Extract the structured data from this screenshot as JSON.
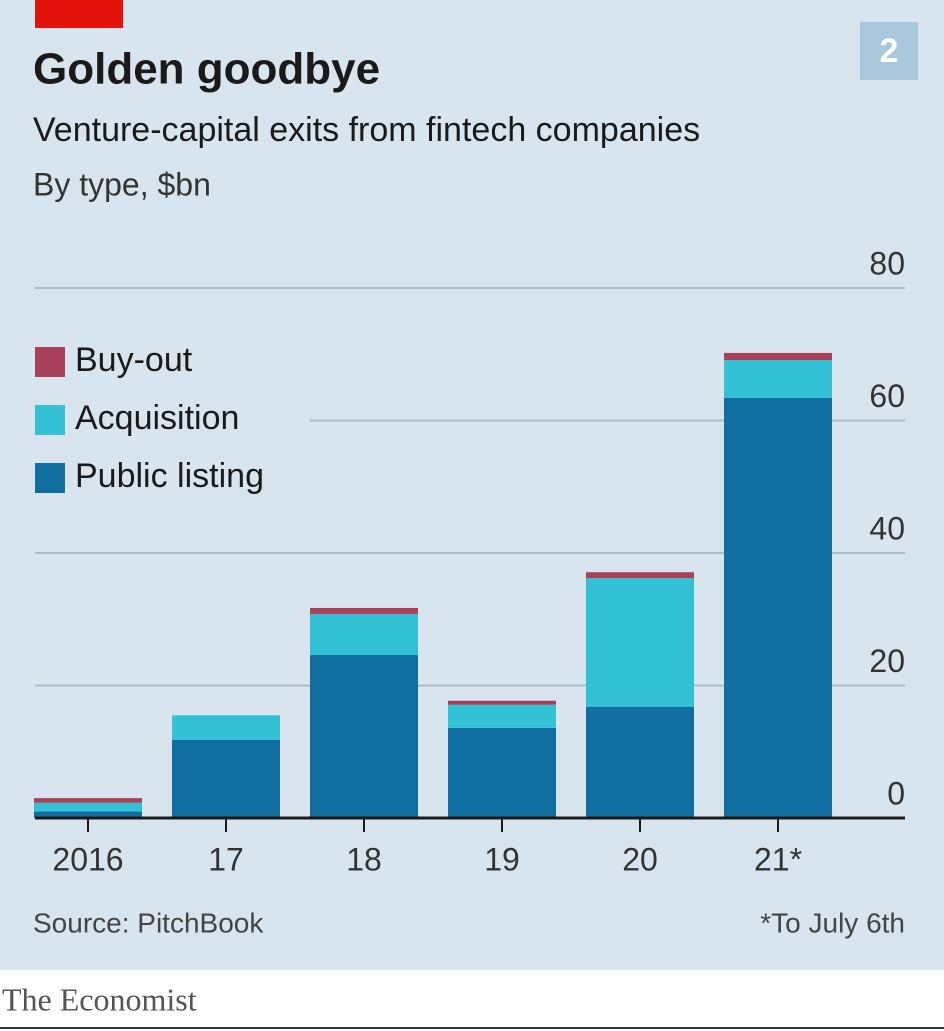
{
  "chart_data": {
    "type": "stacked-bar",
    "badge": "2",
    "title": "Golden goodbye",
    "subtitle": "Venture-capital exits from fintech companies",
    "unit_note": "By type, $bn",
    "categories": [
      "2016",
      "17",
      "18",
      "19",
      "20",
      "21*"
    ],
    "series": [
      {
        "name": "Public listing",
        "color": "#106ea0",
        "values": [
          1,
          11.8,
          24.6,
          13.6,
          16.8,
          63.4
        ]
      },
      {
        "name": "Acquisition",
        "color": "#33c1d6",
        "values": [
          1.3,
          3.7,
          6.2,
          3.5,
          19.4,
          5.7
        ]
      },
      {
        "name": "Buy-out",
        "color": "#a9405a",
        "values": [
          0.7,
          0,
          0.9,
          0.6,
          0.9,
          1.1
        ]
      }
    ],
    "ylim": [
      0,
      80
    ],
    "yticks": [
      0,
      20,
      40,
      60,
      80
    ],
    "grid": true,
    "legend": "top-left",
    "source": "Source: PitchBook",
    "footnote": "*To July 6th",
    "brand": "The Economist"
  }
}
